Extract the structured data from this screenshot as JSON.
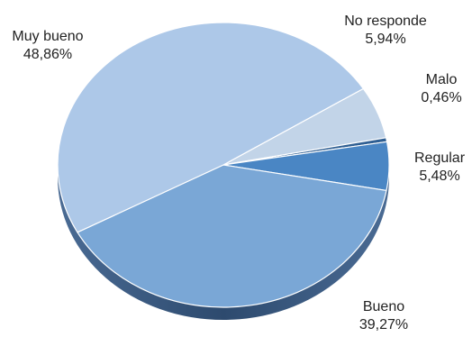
{
  "chart_data": {
    "type": "pie",
    "title": "",
    "slices": [
      {
        "label": "No responde",
        "value": 5.94,
        "value_label": "5,94%",
        "color": "#c2d4e8"
      },
      {
        "label": "Malo",
        "value": 0.46,
        "value_label": "0,46%",
        "color": "#2f5f93"
      },
      {
        "label": "Regular",
        "value": 5.48,
        "value_label": "5,48%",
        "color": "#4a86c4"
      },
      {
        "label": "Bueno",
        "value": 39.27,
        "value_label": "39,27%",
        "color": "#7aa7d6"
      },
      {
        "label": "Muy bueno",
        "value": 48.86,
        "value_label": "48,86%",
        "color": "#adc8e8"
      }
    ],
    "start_angle_deg": 57.6,
    "direction": "clockwise",
    "style": "3d-tilted",
    "legend": "none",
    "shadow_color": "#36557a"
  }
}
